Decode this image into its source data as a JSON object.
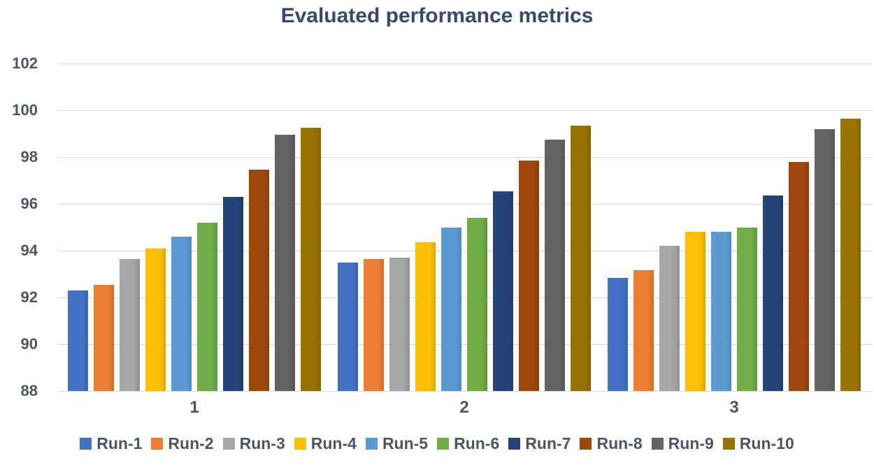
{
  "title": "Evaluated performance metrics",
  "chart_data": {
    "type": "bar",
    "title": "Evaluated performance metrics",
    "xlabel": "",
    "ylabel": "",
    "categories": [
      "1",
      "2",
      "3"
    ],
    "series": [
      {
        "name": "Run-1",
        "color": "#4472C4",
        "values": [
          92.3,
          93.5,
          92.85
        ]
      },
      {
        "name": "Run-2",
        "color": "#ED7D31",
        "values": [
          92.55,
          93.65,
          93.15
        ]
      },
      {
        "name": "Run-3",
        "color": "#A5A5A5",
        "values": [
          93.65,
          93.7,
          94.2
        ]
      },
      {
        "name": "Run-4",
        "color": "#FFC000",
        "values": [
          94.1,
          94.35,
          94.8
        ]
      },
      {
        "name": "Run-5",
        "color": "#5B9BD5",
        "values": [
          94.6,
          95.0,
          94.8
        ]
      },
      {
        "name": "Run-6",
        "color": "#70AD47",
        "values": [
          95.2,
          95.4,
          95.0
        ]
      },
      {
        "name": "Run-7",
        "color": "#264478",
        "values": [
          96.3,
          96.55,
          96.35
        ]
      },
      {
        "name": "Run-8",
        "color": "#9E480E",
        "values": [
          97.45,
          97.85,
          97.8
        ]
      },
      {
        "name": "Run-9",
        "color": "#636363",
        "values": [
          98.95,
          98.75,
          99.2
        ]
      },
      {
        "name": "Run-10",
        "color": "#997300",
        "values": [
          99.25,
          99.35,
          99.65
        ]
      }
    ],
    "ylim": [
      88,
      102
    ],
    "yticks": [
      88,
      90,
      92,
      94,
      96,
      98,
      100,
      102
    ],
    "grid": true,
    "legend_position": "bottom"
  },
  "colors": {
    "title_text": "#38496b",
    "axis_text": "#4b5563",
    "gridline": "#d9d9d9",
    "background": "#ffffff"
  }
}
